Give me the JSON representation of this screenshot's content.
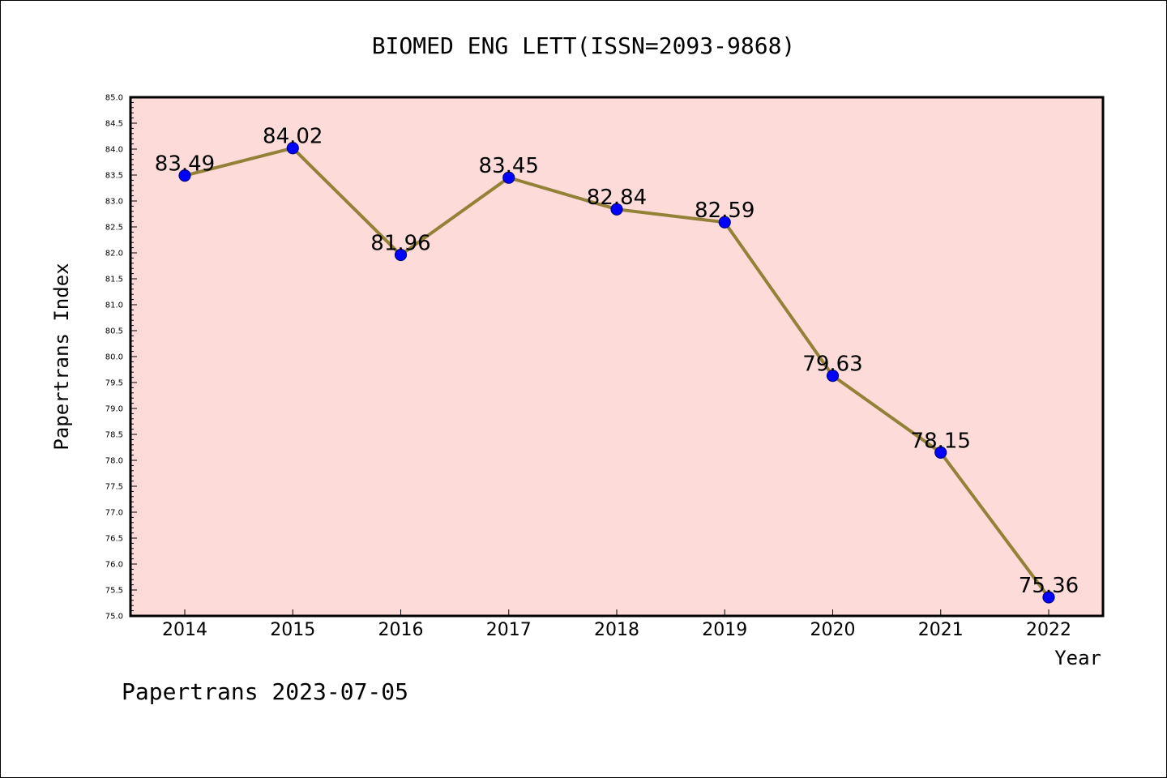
{
  "colors": {
    "plot_background": "#fddbd8",
    "line": "#938138",
    "marker_fill": "#0000ff",
    "marker_stroke": "#00008b",
    "frame": "#000000"
  },
  "footer": {
    "text": "Papertrans 2023-07-05"
  },
  "chart_data": {
    "type": "line",
    "title": "BIOMED ENG LETT(ISSN=2093-9868)",
    "xlabel": "Year",
    "ylabel": "Papertrans Index",
    "categories": [
      "2014",
      "2015",
      "2016",
      "2017",
      "2018",
      "2019",
      "2020",
      "2021",
      "2022"
    ],
    "series": [
      {
        "values": [
          83.49,
          84.02,
          81.96,
          83.45,
          82.84,
          82.59,
          79.63,
          78.15,
          75.36
        ]
      }
    ],
    "data_labels": [
      "83.49",
      "84.02",
      "81.96",
      "83.45",
      "82.84",
      "82.59",
      "79.63",
      "78.15",
      "75.36"
    ],
    "ylim": [
      75.0,
      85.0
    ],
    "y_major_step": 0.5,
    "y_minor_step": 0.1,
    "yticks": [
      "75.0",
      "75.5",
      "76.0",
      "76.5",
      "77.0",
      "77.5",
      "78.0",
      "78.5",
      "79.0",
      "79.5",
      "80.0",
      "80.5",
      "81.0",
      "81.5",
      "82.0",
      "82.5",
      "83.0",
      "83.5",
      "84.0",
      "84.5",
      "85.0"
    ],
    "grid": false,
    "legend": "none"
  }
}
